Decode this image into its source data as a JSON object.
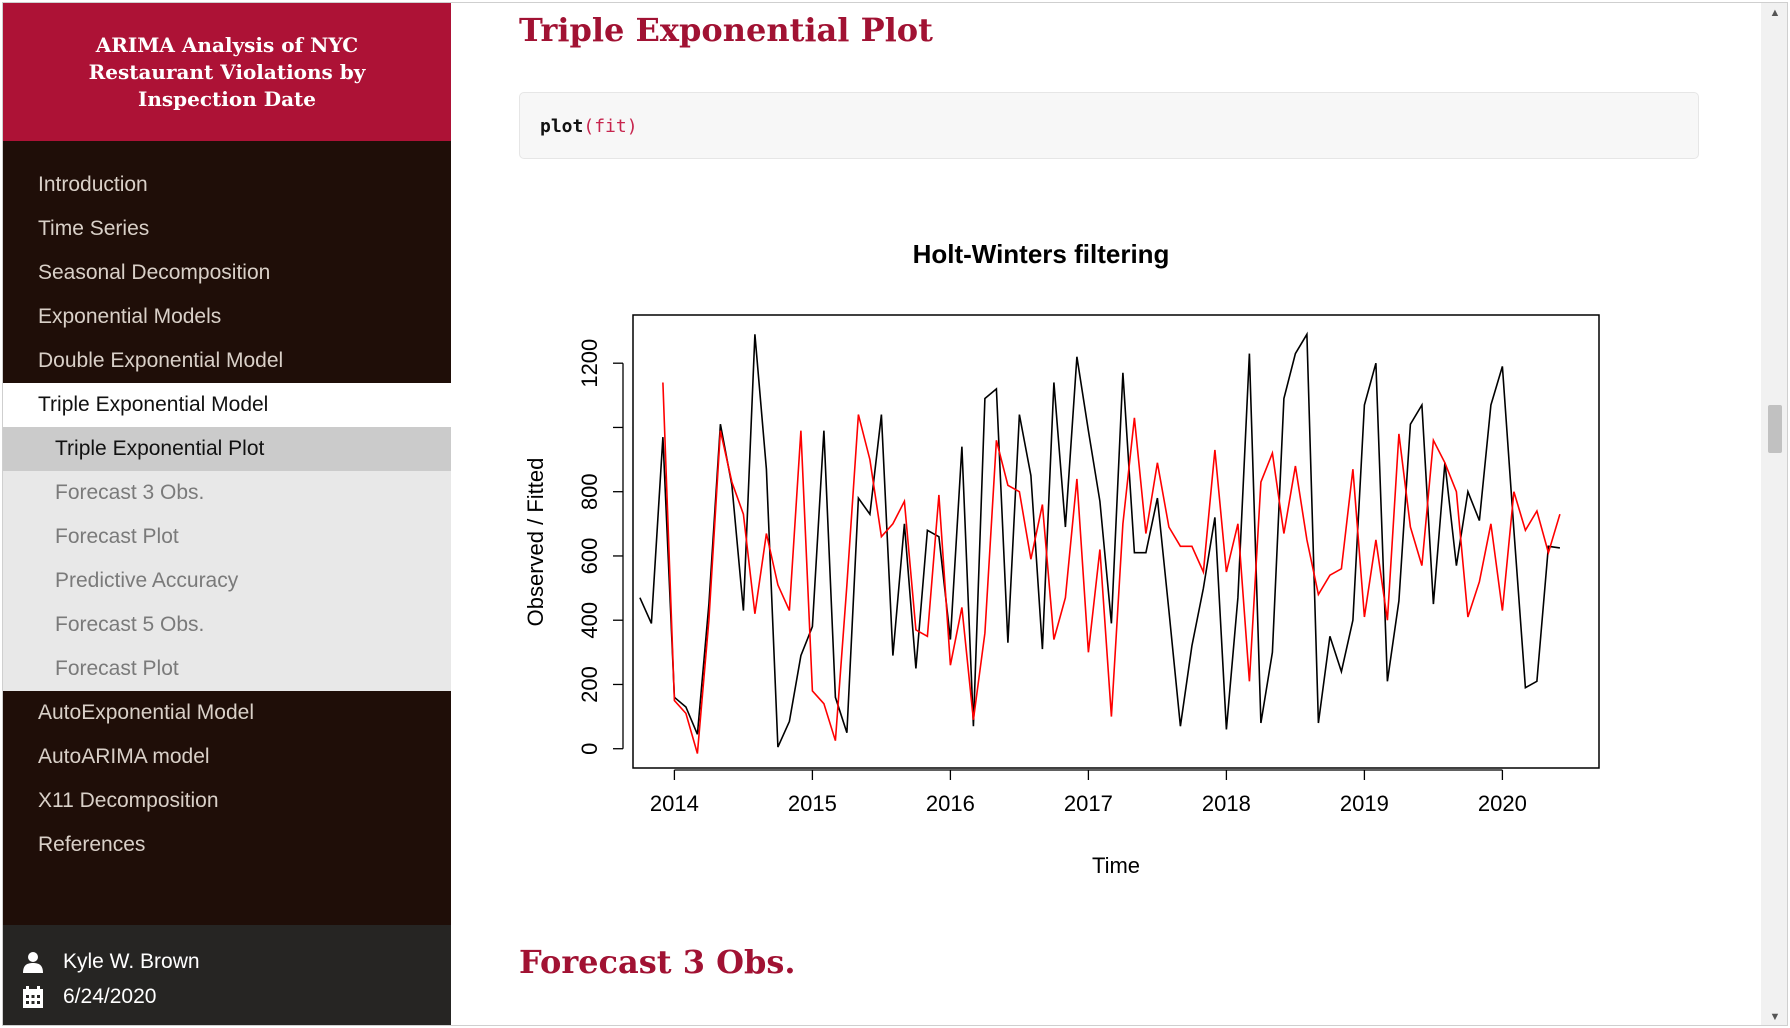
{
  "sidebar": {
    "title": "ARIMA Analysis of NYC Restaurant Violations by Inspection Date",
    "items_before": [
      {
        "label": "Introduction"
      },
      {
        "label": "Time Series"
      },
      {
        "label": "Seasonal Decomposition"
      },
      {
        "label": "Exponential Models"
      },
      {
        "label": "Double Exponential Model"
      }
    ],
    "active_item": {
      "label": "Triple Exponential Model"
    },
    "sub_items": [
      {
        "label": "Triple Exponential Plot",
        "current": true
      },
      {
        "label": "Forecast 3 Obs.",
        "current": false
      },
      {
        "label": "Forecast Plot",
        "current": false
      },
      {
        "label": "Predictive Accuracy",
        "current": false
      },
      {
        "label": "Forecast 5 Obs.",
        "current": false
      },
      {
        "label": "Forecast Plot",
        "current": false
      }
    ],
    "items_after": [
      {
        "label": "AutoExponential Model"
      },
      {
        "label": "AutoARIMA model"
      },
      {
        "label": "X11 Decomposition"
      },
      {
        "label": "References"
      }
    ],
    "footer": {
      "author": "Kyle W. Brown",
      "date": "6/24/2020",
      "author_icon": "user-icon",
      "date_icon": "calendar-icon"
    }
  },
  "main": {
    "section_title": "Triple Exponential Plot",
    "code": {
      "fn": "plot",
      "args": "(fit)"
    },
    "next_section_title": "Forecast 3 Obs."
  },
  "colors": {
    "accent": "#ad1236",
    "heading": "#a11233",
    "sidebar_bg": "#1f0e08",
    "observed": "#000000",
    "fitted": "#ff0000"
  },
  "chart_data": {
    "type": "line",
    "title": "Holt-Winters filtering",
    "xlabel": "Time",
    "ylabel": "Observed / Fitted",
    "xlim": [
      2013.7,
      2020.7
    ],
    "ylim": [
      -60,
      1350
    ],
    "x_ticks": [
      2014,
      2015,
      2016,
      2017,
      2018,
      2019,
      2020
    ],
    "y_ticks": [
      0,
      200,
      400,
      600,
      800,
      1000,
      1200
    ],
    "y_tick_labels": [
      "0",
      "200",
      "400",
      "600",
      "800",
      "",
      "1200"
    ],
    "grid": false,
    "legend": "none",
    "series": [
      {
        "color": "#000000",
        "x": [
          2013.75,
          2013.833,
          2013.917,
          2014.0,
          2014.083,
          2014.167,
          2014.25,
          2014.333,
          2014.417,
          2014.5,
          2014.583,
          2014.667,
          2014.75,
          2014.833,
          2014.917,
          2015.0,
          2015.083,
          2015.167,
          2015.25,
          2015.333,
          2015.417,
          2015.5,
          2015.583,
          2015.667,
          2015.75,
          2015.833,
          2015.917,
          2016.0,
          2016.083,
          2016.167,
          2016.25,
          2016.333,
          2016.417,
          2016.5,
          2016.583,
          2016.667,
          2016.75,
          2016.833,
          2016.917,
          2017.0,
          2017.083,
          2017.167,
          2017.25,
          2017.333,
          2017.417,
          2017.5,
          2017.583,
          2017.667,
          2017.75,
          2017.833,
          2017.917,
          2018.0,
          2018.083,
          2018.167,
          2018.25,
          2018.333,
          2018.417,
          2018.5,
          2018.583,
          2018.667,
          2018.75,
          2018.833,
          2018.917,
          2019.0,
          2019.083,
          2019.167,
          2019.25,
          2019.333,
          2019.417,
          2019.5,
          2019.583,
          2019.667,
          2019.75,
          2019.833,
          2019.917,
          2020.0,
          2020.083,
          2020.167,
          2020.25,
          2020.333,
          2020.417
        ],
        "values": [
          470,
          390,
          970,
          160,
          130,
          45,
          450,
          1010,
          820,
          430,
          1290,
          870,
          5,
          85,
          290,
          380,
          990,
          160,
          50,
          780,
          730,
          1040,
          290,
          700,
          250,
          680,
          660,
          340,
          940,
          70,
          1090,
          1120,
          330,
          1040,
          850,
          310,
          1140,
          690,
          1220,
          990,
          770,
          390,
          1170,
          610,
          610,
          780,
          430,
          70,
          320,
          500,
          720,
          60,
          470,
          1230,
          80,
          300,
          1090,
          1230,
          1290,
          80,
          350,
          240,
          400,
          1070,
          1200,
          210,
          460,
          1010,
          1070,
          450,
          890,
          570,
          800,
          710,
          1070,
          1190,
          680,
          190,
          210,
          630,
          625
        ]
      },
      {
        "color": "#ff0000",
        "x": [
          2013.917,
          2014.0,
          2014.083,
          2014.167,
          2014.25,
          2014.333,
          2014.417,
          2014.5,
          2014.583,
          2014.667,
          2014.75,
          2014.833,
          2014.917,
          2015.0,
          2015.083,
          2015.167,
          2015.25,
          2015.333,
          2015.417,
          2015.5,
          2015.583,
          2015.667,
          2015.75,
          2015.833,
          2015.917,
          2016.0,
          2016.083,
          2016.167,
          2016.25,
          2016.333,
          2016.417,
          2016.5,
          2016.583,
          2016.667,
          2016.75,
          2016.833,
          2016.917,
          2017.0,
          2017.083,
          2017.167,
          2017.25,
          2017.333,
          2017.417,
          2017.5,
          2017.583,
          2017.667,
          2017.75,
          2017.833,
          2017.917,
          2018.0,
          2018.083,
          2018.167,
          2018.25,
          2018.333,
          2018.417,
          2018.5,
          2018.583,
          2018.667,
          2018.75,
          2018.833,
          2018.917,
          2019.0,
          2019.083,
          2019.167,
          2019.25,
          2019.333,
          2019.417,
          2019.5,
          2019.583,
          2019.667,
          2019.75,
          2019.833,
          2019.917,
          2020.0,
          2020.083,
          2020.167,
          2020.25,
          2020.333,
          2020.417
        ],
        "values": [
          1140,
          150,
          110,
          -15,
          400,
          990,
          830,
          730,
          420,
          670,
          510,
          430,
          990,
          180,
          140,
          25,
          510,
          1040,
          900,
          660,
          700,
          770,
          370,
          350,
          790,
          260,
          440,
          90,
          360,
          960,
          820,
          800,
          590,
          760,
          340,
          470,
          840,
          300,
          620,
          100,
          700,
          1030,
          670,
          890,
          690,
          630,
          630,
          550,
          930,
          550,
          700,
          210,
          830,
          920,
          670,
          880,
          650,
          480,
          540,
          560,
          870,
          410,
          650,
          400,
          980,
          690,
          570,
          960,
          890,
          800,
          410,
          520,
          700,
          430,
          800,
          680,
          740,
          610,
          730
        ]
      }
    ]
  }
}
